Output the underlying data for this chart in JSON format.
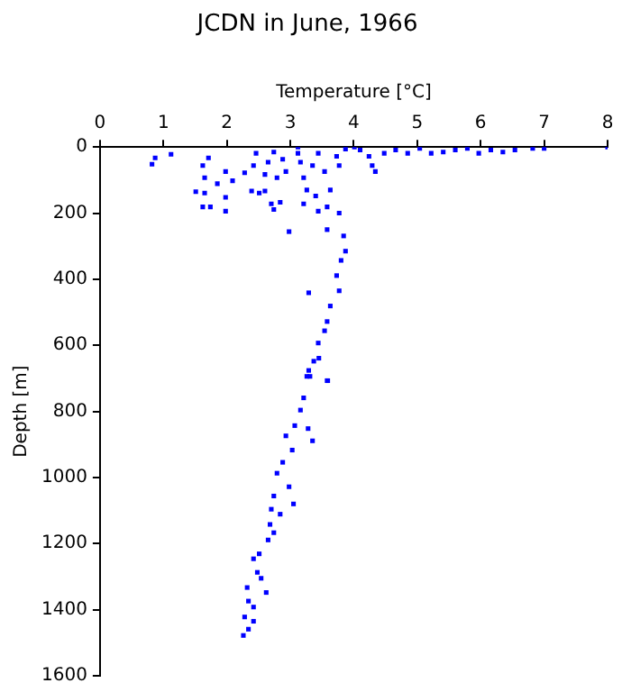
{
  "chart_data": {
    "type": "scatter",
    "title": "JCDN in June, 1966",
    "xlabel": "Temperature [°C]",
    "ylabel": "Depth [m]",
    "xlim": [
      0,
      8
    ],
    "xticks": [
      0,
      1,
      2,
      3,
      4,
      5,
      6,
      7,
      8
    ],
    "ylim": [
      1600,
      0
    ],
    "yticks": [
      0,
      200,
      400,
      600,
      800,
      1000,
      1200,
      1400,
      1600
    ],
    "grid": false,
    "legend": false,
    "marker": "square",
    "series": [
      {
        "color": "#0000ff",
        "x": [
          0.82,
          1.12,
          0.87,
          1.62,
          1.71,
          1.65,
          1.51,
          1.65,
          1.62,
          1.74,
          1.98,
          1.98,
          1.85,
          1.98,
          2.09,
          2.28,
          2.42,
          2.39,
          2.51,
          2.6,
          2.7,
          2.84,
          2.74,
          2.46,
          2.65,
          2.74,
          2.88,
          2.93,
          2.79,
          2.6,
          3.12,
          3.16,
          3.21,
          3.26,
          3.21,
          3.35,
          3.44,
          3.54,
          3.73,
          3.77,
          3.87,
          3.63,
          3.44,
          3.58,
          3.77,
          3.4,
          2.98,
          3.58,
          3.84,
          3.87,
          3.8,
          3.73,
          3.77,
          3.29,
          3.63,
          3.58,
          3.54,
          3.44,
          3.37,
          3.26,
          3.58,
          3.29,
          4.1,
          4.24,
          4.29,
          4.34,
          4.48,
          4.66,
          4.85,
          5.04,
          5.22,
          5.41,
          5.6,
          5.79,
          5.97,
          6.16,
          6.35,
          6.54,
          6.82,
          7.0,
          8.0,
          3.12,
          4.01,
          3.45,
          3.31,
          3.59,
          3.21,
          3.16,
          3.07,
          3.28,
          3.35,
          2.93,
          3.03,
          2.88,
          2.79,
          2.98,
          2.74,
          2.84,
          3.05,
          2.7,
          2.68,
          2.65,
          2.74,
          2.51,
          2.42,
          2.48,
          2.54,
          2.32,
          2.62,
          2.34,
          2.42,
          2.28,
          2.42,
          2.34,
          2.26
        ],
        "values": [
          52,
          22,
          33,
          56,
          33,
          93,
          135,
          139,
          181,
          181,
          194,
          152,
          111,
          74,
          102,
          78,
          56,
          133,
          139,
          133,
          172,
          167,
          189,
          19,
          46,
          15,
          37,
          74,
          93,
          83,
          19,
          46,
          93,
          130,
          172,
          56,
          19,
          74,
          28,
          56,
          6,
          130,
          194,
          181,
          200,
          148,
          256,
          250,
          269,
          315,
          343,
          389,
          435,
          441,
          481,
          528,
          556,
          593,
          648,
          694,
          707,
          676,
          9,
          28,
          56,
          74,
          19,
          9,
          19,
          4,
          19,
          15,
          9,
          4,
          19,
          9,
          15,
          9,
          4,
          4,
          0,
          0,
          0,
          639,
          694,
          707,
          759,
          796,
          843,
          852,
          889,
          874,
          917,
          954,
          987,
          1028,
          1056,
          1111,
          1080,
          1096,
          1142,
          1189,
          1167,
          1231,
          1246,
          1287,
          1305,
          1333,
          1348,
          1374,
          1392,
          1422,
          1435,
          1459,
          1478
        ]
      }
    ]
  }
}
